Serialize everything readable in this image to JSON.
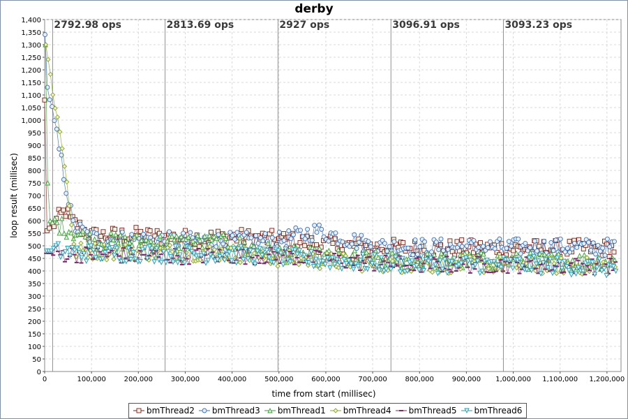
{
  "chart_data": {
    "type": "scatter",
    "title": "derby",
    "xlabel": "time from start (millisec)",
    "ylabel": "loop result (millisec)",
    "xlim": [
      0,
      1230000
    ],
    "ylim": [
      0,
      1400
    ],
    "x_ticks": [
      "0",
      "100,000",
      "200,000",
      "300,000",
      "400,000",
      "500,000",
      "600,000",
      "700,000",
      "800,000",
      "900,000",
      "1,000,000",
      "1,100,000",
      "1,200,000"
    ],
    "y_ticks": [
      "0",
      "50",
      "100",
      "150",
      "200",
      "250",
      "300",
      "350",
      "400",
      "450",
      "500",
      "550",
      "600",
      "650",
      "700",
      "750",
      "800",
      "850",
      "900",
      "950",
      "1,000",
      "1,050",
      "1,100",
      "1,150",
      "1,200",
      "1,250",
      "1,300",
      "1,350",
      "1,400"
    ],
    "grid": true,
    "legend_position": "bottom",
    "markers": [
      {
        "x": 17000,
        "label": "2792.98 ops"
      },
      {
        "x": 257000,
        "label": "2813.69 ops"
      },
      {
        "x": 498000,
        "label": "2927 ops"
      },
      {
        "x": 739000,
        "label": "3096.91 ops"
      },
      {
        "x": 979000,
        "label": "3093.23 ops"
      }
    ],
    "series": [
      {
        "name": "bmThread2",
        "color": "#7a1f1f",
        "fill": "#f5f0e1",
        "marker": "square",
        "values_by_phase": [
          [
            0,
            1080
          ],
          [
            5000,
            560
          ],
          [
            45000,
            640
          ],
          [
            55000,
            600
          ],
          [
            100000,
            540
          ],
          [
            200000,
            540
          ],
          [
            300000,
            530
          ],
          [
            400000,
            535
          ],
          [
            500000,
            525
          ],
          [
            600000,
            505
          ],
          [
            700000,
            495
          ],
          [
            800000,
            490
          ],
          [
            900000,
            490
          ],
          [
            1000000,
            490
          ],
          [
            1100000,
            490
          ],
          [
            1215000,
            490
          ]
        ]
      },
      {
        "name": "bmThread3",
        "color": "#3a6fb0",
        "fill": "#e8eef8",
        "marker": "circle",
        "values_by_phase": [
          [
            0,
            1340
          ],
          [
            2000,
            1160
          ],
          [
            45000,
            735
          ],
          [
            60000,
            580
          ],
          [
            100000,
            530
          ],
          [
            200000,
            525
          ],
          [
            300000,
            520
          ],
          [
            400000,
            520
          ],
          [
            500000,
            520
          ],
          [
            580000,
            560
          ],
          [
            700000,
            500
          ],
          [
            800000,
            495
          ],
          [
            900000,
            495
          ],
          [
            1000000,
            495
          ],
          [
            1100000,
            495
          ],
          [
            1215000,
            495
          ]
        ]
      },
      {
        "name": "bmThread1",
        "color": "#3c9a3c",
        "fill": "#e8f5e0",
        "marker": "triangle-up",
        "values_by_phase": [
          [
            0,
            1300
          ],
          [
            3000,
            810
          ],
          [
            10000,
            600
          ],
          [
            100000,
            520
          ],
          [
            200000,
            515
          ],
          [
            300000,
            515
          ],
          [
            400000,
            510
          ],
          [
            500000,
            470
          ],
          [
            600000,
            455
          ],
          [
            700000,
            445
          ],
          [
            800000,
            440
          ],
          [
            900000,
            440
          ],
          [
            1000000,
            440
          ],
          [
            1100000,
            440
          ],
          [
            1215000,
            440
          ]
        ]
      },
      {
        "name": "bmThread4",
        "color": "#8aa22a",
        "fill": "#eef3d0",
        "marker": "diamond",
        "values_by_phase": [
          [
            0,
            1300
          ],
          [
            45000,
            770
          ],
          [
            60000,
            480
          ],
          [
            100000,
            480
          ],
          [
            200000,
            475
          ],
          [
            300000,
            475
          ],
          [
            400000,
            470
          ],
          [
            500000,
            450
          ],
          [
            600000,
            440
          ],
          [
            700000,
            430
          ],
          [
            800000,
            425
          ],
          [
            900000,
            425
          ],
          [
            1000000,
            425
          ],
          [
            1100000,
            420
          ],
          [
            1215000,
            420
          ]
        ]
      },
      {
        "name": "bmThread5",
        "color": "#7a2a6a",
        "fill": "#7a2a6a",
        "marker": "dash",
        "values_by_phase": [
          [
            0,
            470
          ],
          [
            100000,
            465
          ],
          [
            200000,
            460
          ],
          [
            300000,
            460
          ],
          [
            400000,
            460
          ],
          [
            500000,
            460
          ],
          [
            600000,
            445
          ],
          [
            700000,
            430
          ],
          [
            800000,
            425
          ],
          [
            900000,
            425
          ],
          [
            1000000,
            425
          ],
          [
            1100000,
            420
          ],
          [
            1215000,
            420
          ]
        ]
      },
      {
        "name": "bmThread6",
        "color": "#2a9ab0",
        "fill": "#e0f3f6",
        "marker": "triangle-down",
        "values_by_phase": [
          [
            0,
            480
          ],
          [
            100000,
            470
          ],
          [
            200000,
            470
          ],
          [
            300000,
            465
          ],
          [
            400000,
            465
          ],
          [
            500000,
            455
          ],
          [
            600000,
            440
          ],
          [
            700000,
            430
          ],
          [
            800000,
            425
          ],
          [
            900000,
            425
          ],
          [
            1000000,
            425
          ],
          [
            1100000,
            420
          ],
          [
            1215000,
            410
          ]
        ]
      }
    ],
    "point_spacing": 5000,
    "x_end": 1215000
  }
}
